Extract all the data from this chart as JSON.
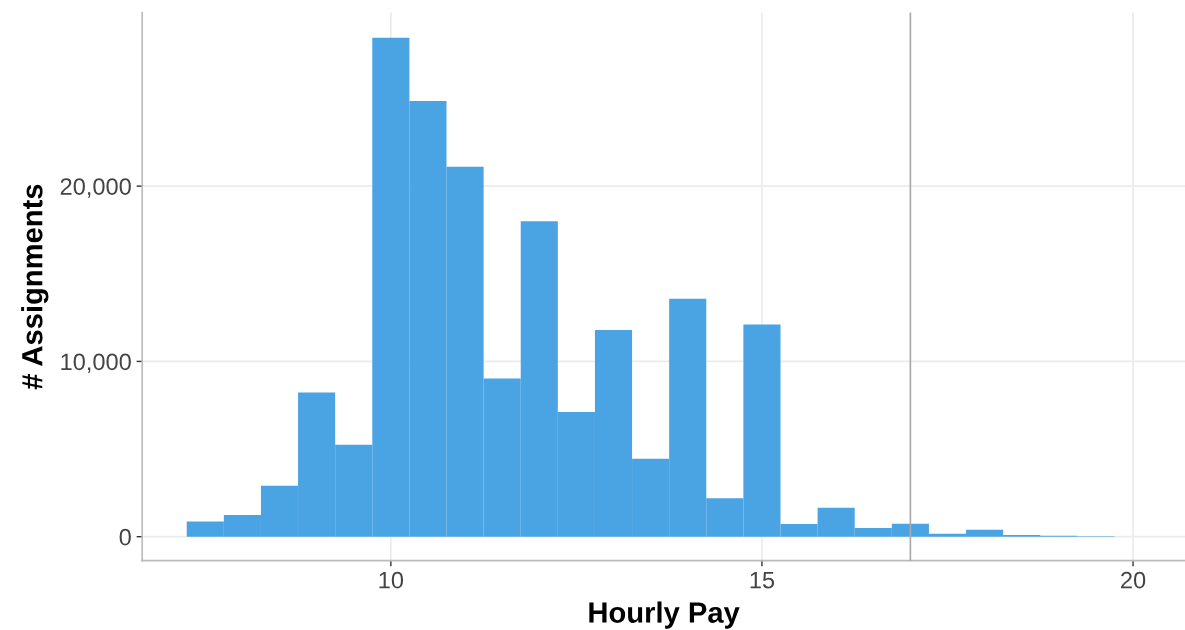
{
  "chart_data": {
    "type": "histogram",
    "xlabel": "Hourly Pay",
    "ylabel": "# Assignments",
    "bins": [
      7.25,
      7.75,
      8.25,
      8.75,
      9.25,
      9.75,
      10.25,
      10.75,
      11.25,
      11.75,
      12.25,
      12.75,
      13.25,
      13.75,
      14.25,
      14.75,
      15.25,
      15.75,
      16.25,
      16.75,
      17.25,
      17.75,
      18.25,
      18.75,
      19.25,
      19.75,
      20.25
    ],
    "values": [
      870,
      1240,
      2910,
      8230,
      5250,
      28460,
      24860,
      21110,
      9020,
      18000,
      7110,
      11790,
      4450,
      13580,
      2190,
      12100,
      720,
      1650,
      490,
      740,
      170,
      400,
      100,
      50,
      20,
      null
    ],
    "color": "#4aa3e2",
    "xlim": [
      6.65,
      20.7
    ],
    "xticks": [
      10,
      15,
      20
    ],
    "ylim": [
      -1370,
      29900
    ],
    "yticks": [
      {
        "value": 0,
        "label": "0"
      },
      {
        "value": 10000,
        "label": "10,000"
      },
      {
        "value": 20000,
        "label": "20,000"
      }
    ],
    "ref_lines": [
      {
        "axis": "x",
        "value": 17,
        "color": "#aaaaaa"
      }
    ],
    "grid": true
  }
}
